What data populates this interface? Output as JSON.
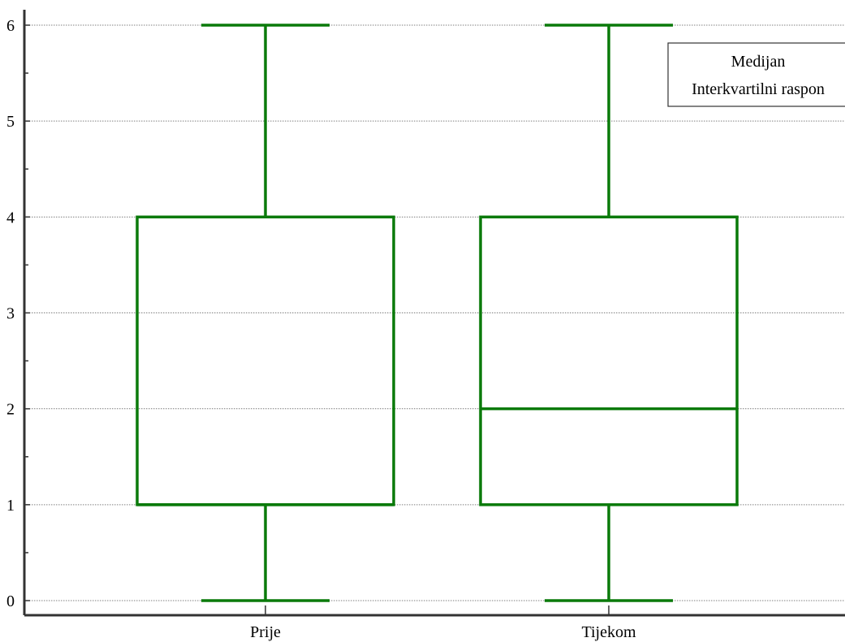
{
  "chart_data": {
    "type": "boxplot",
    "categories": [
      "Prije",
      "Tijekom"
    ],
    "boxes": [
      {
        "category": "Prije",
        "min": 0,
        "q1": 1,
        "median": 1,
        "q3": 4,
        "max": 6
      },
      {
        "category": "Tijekom",
        "min": 0,
        "q1": 1,
        "median": 2,
        "q3": 4,
        "max": 6
      }
    ],
    "ylim": [
      -0.18,
      6.18
    ],
    "yticks": [
      0,
      1,
      2,
      3,
      4,
      5,
      6
    ],
    "minor_yticks": [
      0.5,
      1.5,
      2.5,
      3.5,
      4.5,
      5.5
    ],
    "grid": true,
    "box_color": "#0a7a0a",
    "axis_color": "#333333",
    "legend": {
      "position": "top-right",
      "entries": [
        "Medijan",
        "Interkvartilni raspon"
      ]
    }
  }
}
